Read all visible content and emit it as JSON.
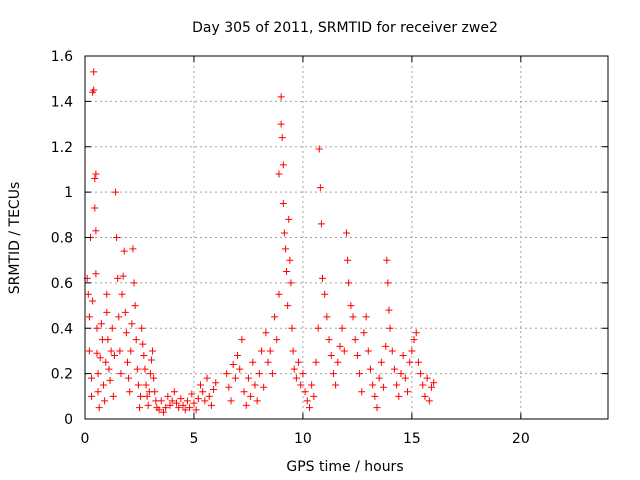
{
  "chart_data": {
    "type": "scatter",
    "title": "Day 305 of 2011, SRMTID for receiver zwe2",
    "xlabel": "GPS time / hours",
    "ylabel": "SRMTID / TECUs",
    "xlim": [
      0,
      24
    ],
    "ylim": [
      0,
      1.6
    ],
    "xticks": [
      0,
      5,
      10,
      15,
      20
    ],
    "yticks": [
      0,
      0.2,
      0.4,
      0.6,
      0.8,
      1,
      1.2,
      1.4,
      1.6
    ],
    "ytick_labels": [
      "0",
      "0.2",
      "0.4",
      "0.6",
      "0.8",
      "1",
      "1.2",
      "1.4",
      "1.6"
    ],
    "grid": true,
    "marker": "+",
    "color": "#ff0000",
    "series": [
      {
        "name": "SRMTID",
        "points": [
          [
            0.1,
            0.62
          ],
          [
            0.15,
            0.55
          ],
          [
            0.2,
            0.45
          ],
          [
            0.2,
            0.3
          ],
          [
            0.25,
            0.8
          ],
          [
            0.3,
            0.18
          ],
          [
            0.3,
            0.1
          ],
          [
            0.35,
            0.52
          ],
          [
            0.35,
            1.44
          ],
          [
            0.4,
            1.53
          ],
          [
            0.4,
            1.45
          ],
          [
            0.45,
            1.06
          ],
          [
            0.45,
            0.93
          ],
          [
            0.5,
            1.08
          ],
          [
            0.5,
            0.83
          ],
          [
            0.5,
            0.64
          ],
          [
            0.55,
            0.4
          ],
          [
            0.55,
            0.29
          ],
          [
            0.6,
            0.2
          ],
          [
            0.6,
            0.12
          ],
          [
            0.65,
            0.05
          ],
          [
            0.7,
            0.27
          ],
          [
            0.75,
            0.42
          ],
          [
            0.8,
            0.35
          ],
          [
            0.85,
            0.15
          ],
          [
            0.9,
            0.08
          ],
          [
            0.95,
            0.25
          ],
          [
            1.0,
            0.55
          ],
          [
            1.0,
            0.47
          ],
          [
            1.05,
            0.35
          ],
          [
            1.1,
            0.22
          ],
          [
            1.15,
            0.17
          ],
          [
            1.2,
            0.3
          ],
          [
            1.25,
            0.4
          ],
          [
            1.3,
            0.1
          ],
          [
            1.35,
            0.28
          ],
          [
            1.4,
            1.0
          ],
          [
            1.45,
            0.8
          ],
          [
            1.5,
            0.62
          ],
          [
            1.55,
            0.45
          ],
          [
            1.6,
            0.3
          ],
          [
            1.65,
            0.2
          ],
          [
            1.7,
            0.55
          ],
          [
            1.75,
            0.63
          ],
          [
            1.8,
            0.74
          ],
          [
            1.85,
            0.47
          ],
          [
            1.9,
            0.38
          ],
          [
            1.95,
            0.25
          ],
          [
            2.0,
            0.18
          ],
          [
            2.05,
            0.12
          ],
          [
            2.1,
            0.3
          ],
          [
            2.15,
            0.42
          ],
          [
            2.2,
            0.75
          ],
          [
            2.25,
            0.6
          ],
          [
            2.3,
            0.5
          ],
          [
            2.35,
            0.35
          ],
          [
            2.4,
            0.22
          ],
          [
            2.45,
            0.15
          ],
          [
            2.5,
            0.05
          ],
          [
            2.55,
            0.1
          ],
          [
            2.6,
            0.4
          ],
          [
            2.65,
            0.33
          ],
          [
            2.7,
            0.28
          ],
          [
            2.75,
            0.22
          ],
          [
            2.8,
            0.15
          ],
          [
            2.85,
            0.1
          ],
          [
            2.9,
            0.06
          ],
          [
            2.95,
            0.12
          ],
          [
            3.0,
            0.2
          ],
          [
            3.05,
            0.26
          ],
          [
            3.1,
            0.3
          ],
          [
            3.15,
            0.18
          ],
          [
            3.2,
            0.12
          ],
          [
            3.25,
            0.08
          ],
          [
            3.3,
            0.05
          ],
          [
            3.4,
            0.04
          ],
          [
            3.5,
            0.08
          ],
          [
            3.6,
            0.03
          ],
          [
            3.7,
            0.05
          ],
          [
            3.8,
            0.1
          ],
          [
            3.9,
            0.06
          ],
          [
            4.0,
            0.08
          ],
          [
            4.1,
            0.12
          ],
          [
            4.2,
            0.07
          ],
          [
            4.3,
            0.05
          ],
          [
            4.4,
            0.09
          ],
          [
            4.5,
            0.06
          ],
          [
            4.6,
            0.04
          ],
          [
            4.7,
            0.08
          ],
          [
            4.8,
            0.05
          ],
          [
            4.9,
            0.11
          ],
          [
            5.0,
            0.07
          ],
          [
            5.1,
            0.04
          ],
          [
            5.2,
            0.09
          ],
          [
            5.3,
            0.15
          ],
          [
            5.4,
            0.12
          ],
          [
            5.5,
            0.08
          ],
          [
            5.6,
            0.18
          ],
          [
            5.7,
            0.1
          ],
          [
            5.8,
            0.06
          ],
          [
            5.9,
            0.13
          ],
          [
            6.0,
            0.16
          ],
          [
            6.5,
            0.2
          ],
          [
            6.6,
            0.14
          ],
          [
            6.7,
            0.08
          ],
          [
            6.8,
            0.24
          ],
          [
            6.9,
            0.18
          ],
          [
            7.0,
            0.28
          ],
          [
            7.1,
            0.22
          ],
          [
            7.2,
            0.35
          ],
          [
            7.3,
            0.12
          ],
          [
            7.4,
            0.06
          ],
          [
            7.5,
            0.18
          ],
          [
            7.6,
            0.1
          ],
          [
            7.7,
            0.25
          ],
          [
            7.8,
            0.15
          ],
          [
            7.9,
            0.08
          ],
          [
            8.0,
            0.2
          ],
          [
            8.1,
            0.3
          ],
          [
            8.2,
            0.14
          ],
          [
            8.3,
            0.38
          ],
          [
            8.4,
            0.25
          ],
          [
            8.5,
            0.3
          ],
          [
            8.6,
            0.2
          ],
          [
            8.7,
            0.45
          ],
          [
            8.8,
            0.35
          ],
          [
            8.9,
            0.55
          ],
          [
            8.9,
            1.08
          ],
          [
            9.0,
            1.42
          ],
          [
            9.0,
            1.3
          ],
          [
            9.05,
            1.24
          ],
          [
            9.1,
            1.12
          ],
          [
            9.1,
            0.95
          ],
          [
            9.15,
            0.82
          ],
          [
            9.2,
            0.75
          ],
          [
            9.25,
            0.65
          ],
          [
            9.3,
            0.5
          ],
          [
            9.35,
            0.88
          ],
          [
            9.4,
            0.7
          ],
          [
            9.45,
            0.6
          ],
          [
            9.5,
            0.4
          ],
          [
            9.55,
            0.3
          ],
          [
            9.6,
            0.22
          ],
          [
            9.7,
            0.18
          ],
          [
            9.8,
            0.25
          ],
          [
            9.9,
            0.15
          ],
          [
            10.0,
            0.2
          ],
          [
            10.1,
            0.12
          ],
          [
            10.2,
            0.08
          ],
          [
            10.3,
            0.05
          ],
          [
            10.4,
            0.15
          ],
          [
            10.5,
            0.1
          ],
          [
            10.6,
            0.25
          ],
          [
            10.7,
            0.4
          ],
          [
            10.75,
            1.19
          ],
          [
            10.8,
            1.02
          ],
          [
            10.85,
            0.86
          ],
          [
            10.9,
            0.62
          ],
          [
            11.0,
            0.55
          ],
          [
            11.1,
            0.45
          ],
          [
            11.2,
            0.35
          ],
          [
            11.3,
            0.28
          ],
          [
            11.4,
            0.2
          ],
          [
            11.5,
            0.15
          ],
          [
            11.6,
            0.25
          ],
          [
            11.7,
            0.32
          ],
          [
            11.8,
            0.4
          ],
          [
            11.9,
            0.3
          ],
          [
            12.0,
            0.82
          ],
          [
            12.05,
            0.7
          ],
          [
            12.1,
            0.6
          ],
          [
            12.2,
            0.5
          ],
          [
            12.3,
            0.45
          ],
          [
            12.4,
            0.35
          ],
          [
            12.5,
            0.28
          ],
          [
            12.6,
            0.2
          ],
          [
            12.7,
            0.12
          ],
          [
            12.8,
            0.38
          ],
          [
            12.9,
            0.45
          ],
          [
            13.0,
            0.3
          ],
          [
            13.1,
            0.22
          ],
          [
            13.2,
            0.15
          ],
          [
            13.3,
            0.1
          ],
          [
            13.4,
            0.05
          ],
          [
            13.5,
            0.18
          ],
          [
            13.6,
            0.25
          ],
          [
            13.7,
            0.14
          ],
          [
            13.8,
            0.32
          ],
          [
            13.85,
            0.7
          ],
          [
            13.9,
            0.6
          ],
          [
            13.95,
            0.48
          ],
          [
            14.0,
            0.4
          ],
          [
            14.1,
            0.3
          ],
          [
            14.2,
            0.22
          ],
          [
            14.3,
            0.15
          ],
          [
            14.4,
            0.1
          ],
          [
            14.5,
            0.2
          ],
          [
            14.6,
            0.28
          ],
          [
            14.7,
            0.18
          ],
          [
            14.8,
            0.12
          ],
          [
            14.9,
            0.25
          ],
          [
            15.0,
            0.3
          ],
          [
            15.1,
            0.35
          ],
          [
            15.2,
            0.38
          ],
          [
            15.3,
            0.25
          ],
          [
            15.4,
            0.2
          ],
          [
            15.5,
            0.15
          ],
          [
            15.6,
            0.1
          ],
          [
            15.7,
            0.18
          ],
          [
            15.8,
            0.08
          ],
          [
            15.9,
            0.14
          ],
          [
            16.0,
            0.16
          ]
        ]
      }
    ]
  }
}
